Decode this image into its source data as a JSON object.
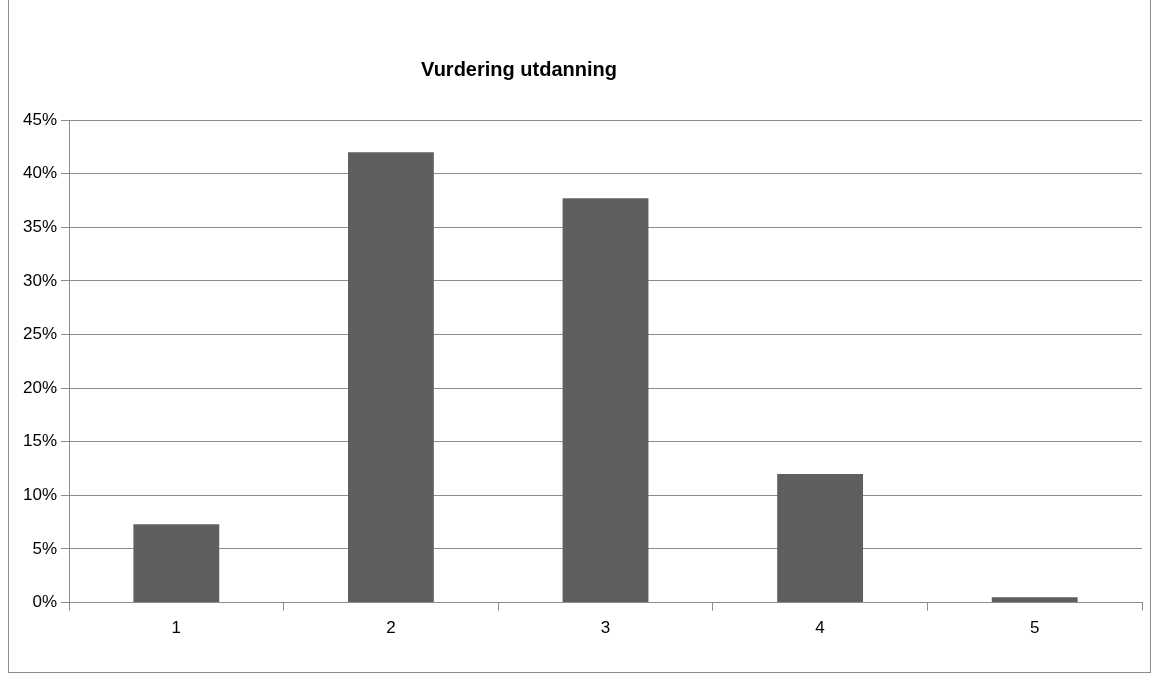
{
  "chart_data": {
    "type": "bar",
    "title": "Vurdering utdanning",
    "categories": [
      "1",
      "2",
      "3",
      "4",
      "5"
    ],
    "values": [
      7.3,
      42.0,
      37.7,
      12.0,
      0.5
    ],
    "color": "#5f5f5f",
    "ylim": [
      0,
      45
    ],
    "yticks": [
      {
        "value": 0,
        "label": "0%"
      },
      {
        "value": 5,
        "label": "5%"
      },
      {
        "value": 10,
        "label": "10%"
      },
      {
        "value": 15,
        "label": "15%"
      },
      {
        "value": 20,
        "label": "20%"
      },
      {
        "value": 25,
        "label": "25%"
      },
      {
        "value": 30,
        "label": "30%"
      },
      {
        "value": 35,
        "label": "35%"
      },
      {
        "value": 40,
        "label": "40%"
      },
      {
        "value": 45,
        "label": "45%"
      }
    ],
    "grid": "y",
    "legend": false
  }
}
